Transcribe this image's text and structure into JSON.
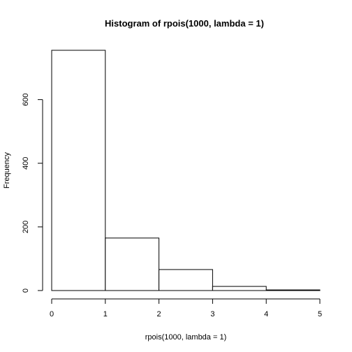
{
  "chart_data": {
    "type": "bar",
    "title": "Histogram of rpois(1000, lambda = 1)",
    "xlabel": "rpois(1000, lambda = 1)",
    "ylabel": "Frequency",
    "bins": [
      {
        "x0": 0,
        "x1": 1,
        "count": 755
      },
      {
        "x0": 1,
        "x1": 2,
        "count": 165
      },
      {
        "x0": 2,
        "x1": 3,
        "count": 66
      },
      {
        "x0": 3,
        "x1": 4,
        "count": 13
      },
      {
        "x0": 4,
        "x1": 5,
        "count": 2
      }
    ],
    "xlim": [
      0,
      5
    ],
    "ylim": [
      0,
      755
    ],
    "x_ticks": [
      "0",
      "1",
      "2",
      "3",
      "4",
      "5"
    ],
    "y_ticks": [
      "0",
      "200",
      "400",
      "600"
    ],
    "grid": false,
    "legend": "none"
  }
}
